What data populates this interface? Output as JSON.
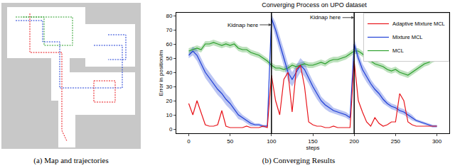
{
  "chart_data": {
    "type": "line",
    "title": "Converging Process on UPO dataset",
    "xlabel": "steps",
    "ylabel": "Error in position/m",
    "x": [
      0,
      5,
      10,
      15,
      20,
      25,
      30,
      35,
      40,
      45,
      50,
      55,
      60,
      65,
      70,
      75,
      80,
      85,
      90,
      95,
      100,
      105,
      110,
      115,
      120,
      125,
      130,
      135,
      140,
      145,
      150,
      155,
      160,
      165,
      170,
      175,
      180,
      185,
      190,
      195,
      200,
      205,
      210,
      215,
      220,
      225,
      230,
      235,
      240,
      245,
      250,
      255,
      260,
      265,
      270,
      275,
      280,
      285,
      290,
      295,
      300
    ],
    "series": [
      {
        "name": "MCL",
        "color": "#2ca02c",
        "values": [
          55,
          56,
          57,
          56,
          60,
          60,
          61,
          60,
          59,
          60,
          59,
          60,
          57,
          56,
          56,
          54,
          53,
          52,
          50,
          48,
          45,
          43,
          43,
          42,
          43,
          45,
          44,
          45,
          46,
          45,
          45,
          46,
          47,
          46,
          48,
          49,
          49,
          50,
          51,
          53,
          55,
          55,
          53,
          50,
          48,
          46,
          45,
          44,
          42,
          41,
          42,
          40,
          39,
          38,
          40,
          42,
          44,
          46,
          47,
          49,
          50
        ],
        "error": [
          2,
          2,
          2,
          2,
          2,
          2,
          2,
          2,
          2,
          2,
          2,
          2,
          2,
          2,
          2,
          2,
          2,
          2,
          2,
          2,
          2,
          2,
          2,
          2,
          2,
          2,
          2,
          2,
          2,
          2,
          2,
          2,
          2,
          2,
          2,
          2,
          2,
          2,
          2,
          2,
          2,
          2,
          2,
          2,
          2,
          2,
          2,
          2,
          2,
          2,
          2,
          2,
          2,
          2,
          2,
          2,
          2,
          2,
          2,
          2,
          2
        ]
      },
      {
        "name": "Mixture MCL",
        "color": "#1f3fd6",
        "values": [
          52,
          55,
          52,
          46,
          40,
          36,
          32,
          28,
          25,
          21,
          18,
          14,
          10,
          8,
          6,
          4,
          3,
          3,
          2,
          2,
          78,
          70,
          60,
          50,
          40,
          35,
          40,
          45,
          42,
          36,
          30,
          25,
          20,
          17,
          15,
          13,
          12,
          11,
          10,
          8,
          60,
          50,
          42,
          37,
          32,
          28,
          25,
          21,
          18,
          16,
          15,
          13,
          12,
          10,
          8,
          6,
          5,
          4,
          3,
          2,
          2
        ],
        "error": [
          2,
          3,
          4,
          4,
          4,
          4,
          4,
          4,
          4,
          4,
          4,
          3,
          3,
          2,
          2,
          2,
          1,
          1,
          1,
          1,
          3,
          5,
          6,
          6,
          6,
          5,
          5,
          5,
          5,
          4,
          4,
          4,
          3,
          3,
          3,
          2,
          2,
          2,
          2,
          2,
          4,
          4,
          4,
          4,
          3,
          3,
          3,
          3,
          2,
          2,
          2,
          2,
          2,
          2,
          2,
          1,
          1,
          1,
          1,
          1,
          1
        ]
      },
      {
        "name": "Adaptive Mixture MCL",
        "color": "#e8141a",
        "values": [
          18,
          10,
          20,
          12,
          3,
          2,
          2,
          3,
          13,
          2,
          1,
          1,
          1,
          1,
          2,
          1,
          1,
          1,
          2,
          1,
          38,
          20,
          10,
          35,
          40,
          12,
          42,
          45,
          30,
          5,
          3,
          2,
          2,
          1,
          1,
          2,
          1,
          1,
          1,
          1,
          48,
          20,
          12,
          5,
          2,
          8,
          4,
          2,
          3,
          5,
          5,
          25,
          20,
          5,
          3,
          2,
          2,
          2,
          2,
          2,
          2
        ]
      }
    ],
    "xlim": [
      -15,
      315
    ],
    "xticks": [
      0,
      50,
      100,
      150,
      200,
      250,
      300
    ],
    "ylim": [
      -3,
      82
    ],
    "yticks": [
      0,
      10,
      20,
      30,
      40,
      50,
      60,
      70,
      80
    ],
    "annotations": [
      {
        "text": "Kidnap here",
        "x": 100
      },
      {
        "text": "Kidnap here",
        "x": 200
      }
    ],
    "legend": "upper right",
    "grid": false
  },
  "captions": [
    "(a) Map and trajectories",
    "(b) Converging Results"
  ]
}
